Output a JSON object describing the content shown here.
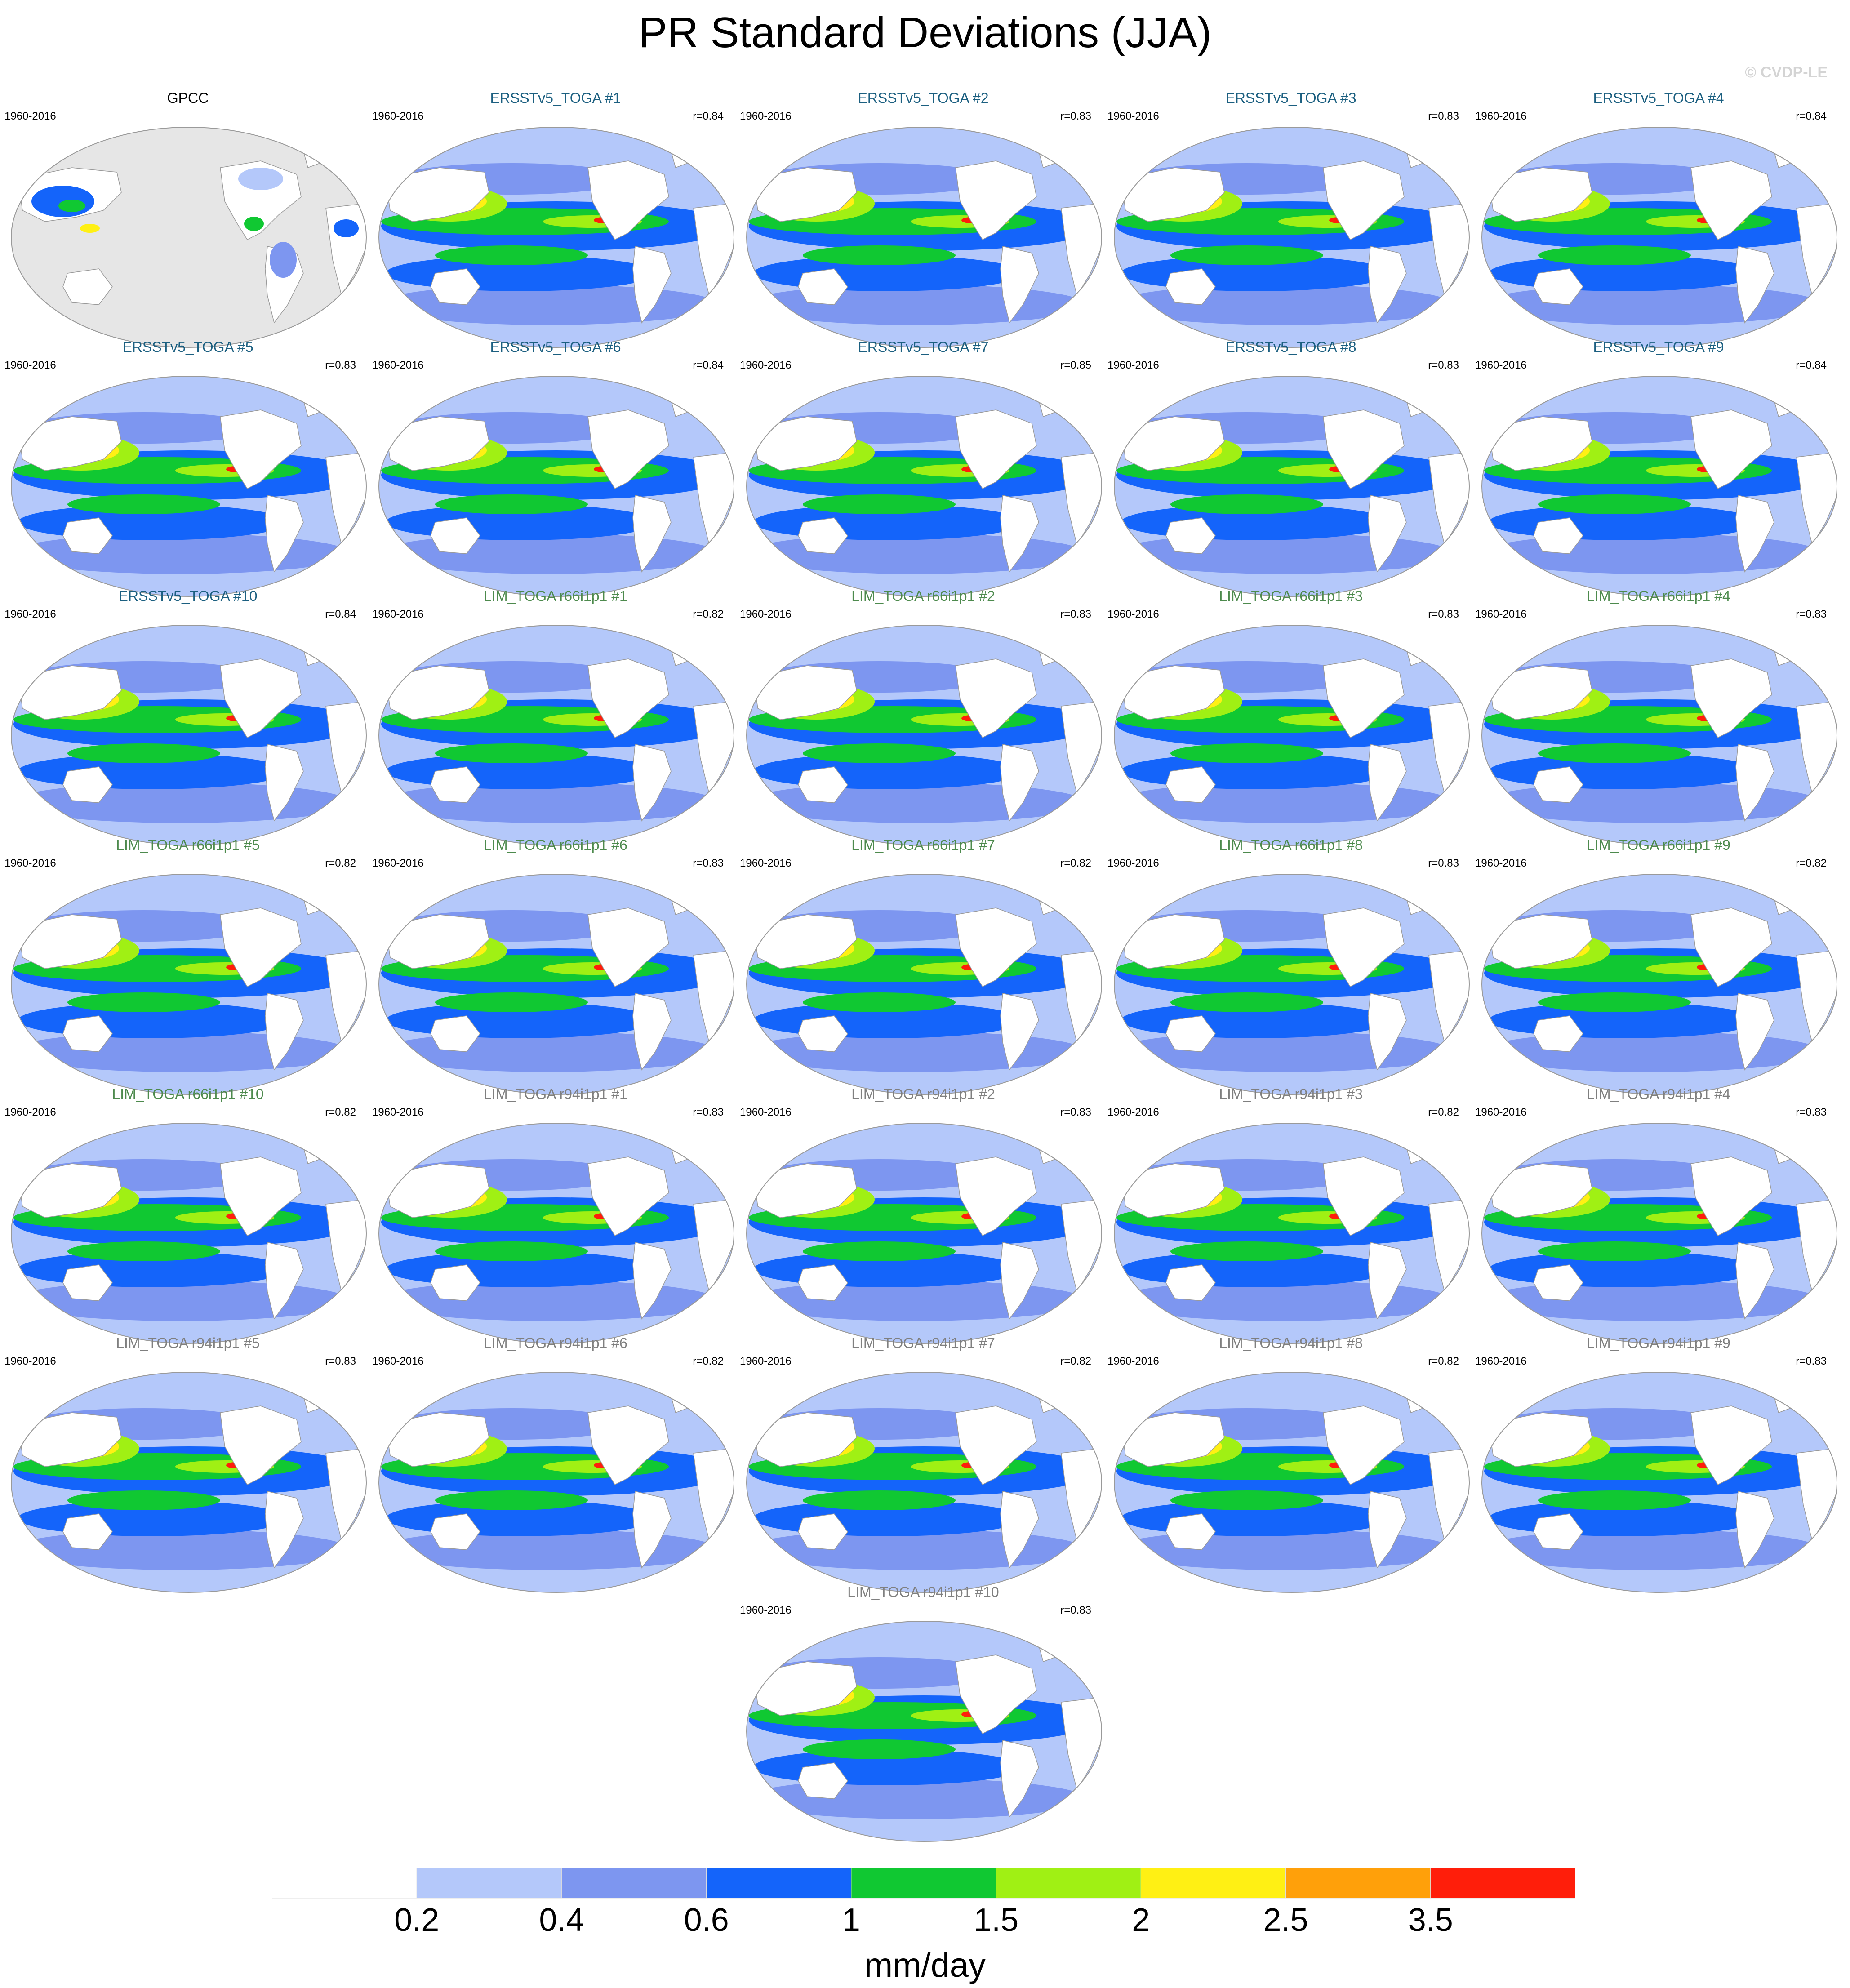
{
  "title": "PR Standard Deviations (JJA)",
  "copyright": "© CVDP-LE",
  "colors": {
    "title_obs": "#000000",
    "title_ersst": "#1b5f80",
    "title_lim66": "#4d8a4d",
    "title_lim94": "#7f7f7f",
    "land_mask": "#e6e6e6",
    "outline": "#9a9a9a"
  },
  "panels": [
    {
      "title": "GPCC",
      "group": "obs",
      "period": "1960-2016",
      "r": ""
    },
    {
      "title": "ERSSTv5_TOGA #1",
      "group": "ersst",
      "period": "1960-2016",
      "r": "r=0.84"
    },
    {
      "title": "ERSSTv5_TOGA #2",
      "group": "ersst",
      "period": "1960-2016",
      "r": "r=0.83"
    },
    {
      "title": "ERSSTv5_TOGA #3",
      "group": "ersst",
      "period": "1960-2016",
      "r": "r=0.83"
    },
    {
      "title": "ERSSTv5_TOGA #4",
      "group": "ersst",
      "period": "1960-2016",
      "r": "r=0.84"
    },
    {
      "title": "ERSSTv5_TOGA #5",
      "group": "ersst",
      "period": "1960-2016",
      "r": "r=0.83"
    },
    {
      "title": "ERSSTv5_TOGA #6",
      "group": "ersst",
      "period": "1960-2016",
      "r": "r=0.84"
    },
    {
      "title": "ERSSTv5_TOGA #7",
      "group": "ersst",
      "period": "1960-2016",
      "r": "r=0.85"
    },
    {
      "title": "ERSSTv5_TOGA #8",
      "group": "ersst",
      "period": "1960-2016",
      "r": "r=0.83"
    },
    {
      "title": "ERSSTv5_TOGA #9",
      "group": "ersst",
      "period": "1960-2016",
      "r": "r=0.84"
    },
    {
      "title": "ERSSTv5_TOGA #10",
      "group": "ersst",
      "period": "1960-2016",
      "r": "r=0.84"
    },
    {
      "title": "LIM_TOGA r66i1p1 #1",
      "group": "lim66",
      "period": "1960-2016",
      "r": "r=0.82"
    },
    {
      "title": "LIM_TOGA r66i1p1 #2",
      "group": "lim66",
      "period": "1960-2016",
      "r": "r=0.83"
    },
    {
      "title": "LIM_TOGA r66i1p1 #3",
      "group": "lim66",
      "period": "1960-2016",
      "r": "r=0.83"
    },
    {
      "title": "LIM_TOGA r66i1p1 #4",
      "group": "lim66",
      "period": "1960-2016",
      "r": "r=0.83"
    },
    {
      "title": "LIM_TOGA r66i1p1 #5",
      "group": "lim66",
      "period": "1960-2016",
      "r": "r=0.82"
    },
    {
      "title": "LIM_TOGA r66i1p1 #6",
      "group": "lim66",
      "period": "1960-2016",
      "r": "r=0.83"
    },
    {
      "title": "LIM_TOGA r66i1p1 #7",
      "group": "lim66",
      "period": "1960-2016",
      "r": "r=0.82"
    },
    {
      "title": "LIM_TOGA r66i1p1 #8",
      "group": "lim66",
      "period": "1960-2016",
      "r": "r=0.83"
    },
    {
      "title": "LIM_TOGA r66i1p1 #9",
      "group": "lim66",
      "period": "1960-2016",
      "r": "r=0.82"
    },
    {
      "title": "LIM_TOGA r66i1p1 #10",
      "group": "lim66",
      "period": "1960-2016",
      "r": "r=0.82"
    },
    {
      "title": "LIM_TOGA r94i1p1 #1",
      "group": "lim94",
      "period": "1960-2016",
      "r": "r=0.83"
    },
    {
      "title": "LIM_TOGA r94i1p1 #2",
      "group": "lim94",
      "period": "1960-2016",
      "r": "r=0.83"
    },
    {
      "title": "LIM_TOGA r94i1p1 #3",
      "group": "lim94",
      "period": "1960-2016",
      "r": "r=0.82"
    },
    {
      "title": "LIM_TOGA r94i1p1 #4",
      "group": "lim94",
      "period": "1960-2016",
      "r": "r=0.83"
    },
    {
      "title": "LIM_TOGA r94i1p1 #5",
      "group": "lim94",
      "period": "1960-2016",
      "r": "r=0.83"
    },
    {
      "title": "LIM_TOGA r94i1p1 #6",
      "group": "lim94",
      "period": "1960-2016",
      "r": "r=0.82"
    },
    {
      "title": "LIM_TOGA r94i1p1 #7",
      "group": "lim94",
      "period": "1960-2016",
      "r": "r=0.82"
    },
    {
      "title": "LIM_TOGA r94i1p1 #8",
      "group": "lim94",
      "period": "1960-2016",
      "r": "r=0.82"
    },
    {
      "title": "LIM_TOGA r94i1p1 #9",
      "group": "lim94",
      "period": "1960-2016",
      "r": "r=0.83"
    },
    {
      "title": "LIM_TOGA r94i1p1 #10",
      "group": "lim94",
      "period": "1960-2016",
      "r": "r=0.83"
    }
  ],
  "colorbar": {
    "colors": [
      "#ffffff",
      "#b4c8fa",
      "#7d96f0",
      "#1464fa",
      "#10c832",
      "#a0f014",
      "#fff014",
      "#ffa00a",
      "#ff1e0a"
    ],
    "labels": [
      "0.2",
      "0.4",
      "0.6",
      "1",
      "1.5",
      "2",
      "2.5",
      "3.5"
    ],
    "units": "mm/day"
  }
}
